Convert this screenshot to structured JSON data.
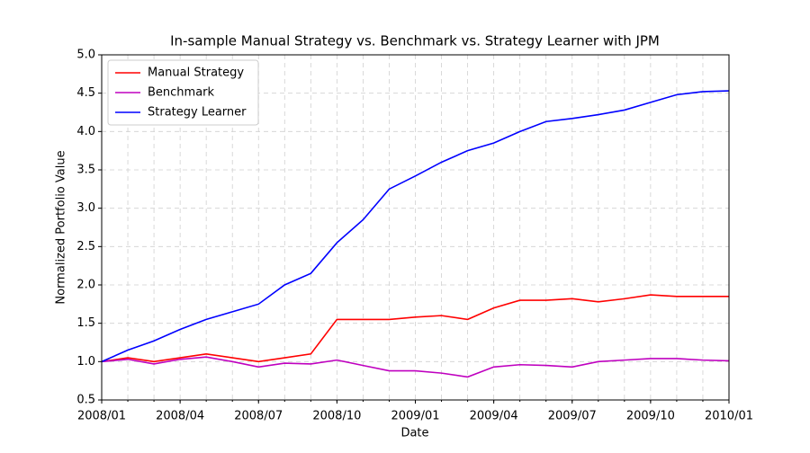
{
  "chart_data": {
    "type": "line",
    "title": "In-sample Manual Strategy vs. Benchmark vs. Strategy Learner with JPM",
    "xlabel": "Date",
    "ylabel": "Normalized Portfolio Value",
    "x": [
      "2008/01",
      "2008/02",
      "2008/03",
      "2008/04",
      "2008/05",
      "2008/06",
      "2008/07",
      "2008/08",
      "2008/09",
      "2008/10",
      "2008/11",
      "2008/12",
      "2009/01",
      "2009/02",
      "2009/03",
      "2009/04",
      "2009/05",
      "2009/06",
      "2009/07",
      "2009/08",
      "2009/09",
      "2009/10",
      "2009/11",
      "2009/12",
      "2010/01"
    ],
    "series": [
      {
        "name": "Manual Strategy",
        "color": "#ff0000",
        "values": [
          1.0,
          1.05,
          1.0,
          1.05,
          1.1,
          1.05,
          1.0,
          1.05,
          1.1,
          1.55,
          1.55,
          1.55,
          1.58,
          1.6,
          1.55,
          1.7,
          1.8,
          1.8,
          1.82,
          1.78,
          1.82,
          1.87,
          1.85,
          1.85,
          1.85
        ]
      },
      {
        "name": "Benchmark",
        "color": "#bf00bf",
        "values": [
          1.0,
          1.03,
          0.97,
          1.03,
          1.06,
          1.0,
          0.93,
          0.98,
          0.97,
          1.02,
          0.95,
          0.88,
          0.88,
          0.85,
          0.8,
          0.93,
          0.96,
          0.95,
          0.93,
          1.0,
          1.02,
          1.04,
          1.04,
          1.02,
          1.01
        ]
      },
      {
        "name": "Strategy Learner",
        "color": "#0000ff",
        "values": [
          1.0,
          1.15,
          1.27,
          1.42,
          1.55,
          1.65,
          1.75,
          2.0,
          2.15,
          2.55,
          2.85,
          3.25,
          3.42,
          3.6,
          3.75,
          3.85,
          4.0,
          4.13,
          4.17,
          4.22,
          4.28,
          4.38,
          4.48,
          4.52,
          4.53
        ]
      }
    ],
    "xlim": [
      "2008/01",
      "2010/01"
    ],
    "xticks": [
      "2008/01",
      "2008/04",
      "2008/07",
      "2008/10",
      "2009/01",
      "2009/04",
      "2009/07",
      "2009/10",
      "2010/01"
    ],
    "ylim": [
      0.5,
      5.0
    ],
    "yticks": [
      0.5,
      1.0,
      1.5,
      2.0,
      2.5,
      3.0,
      3.5,
      4.0,
      4.5,
      5.0
    ],
    "yticklabels": [
      "0.5",
      "1.0",
      "1.5",
      "2.0",
      "2.5",
      "3.0",
      "3.5",
      "4.0",
      "4.5",
      "5.0"
    ],
    "grid": true,
    "legend": "upper left"
  }
}
